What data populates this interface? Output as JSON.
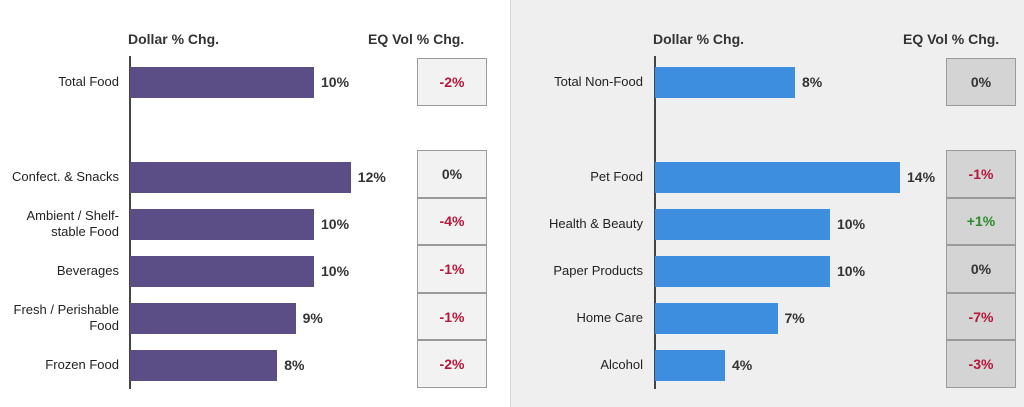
{
  "colors": {
    "food_bar": "#5b4d86",
    "nonfood_bar": "#3d8ede",
    "negative": "#b5173a",
    "positive": "#2b8a2b",
    "neutral": "#333333",
    "eq_box_left": "#f2f2f2",
    "eq_box_right": "#d4d4d4"
  },
  "chart_data": [
    {
      "type": "bar",
      "orientation": "horizontal",
      "xlabel": "Dollar % Chg.",
      "eq_header": "EQ Vol % Chg.",
      "categories": [
        "Total Food",
        "Confect. & Snacks",
        "Ambient / Shelf-stable Food",
        "Beverages",
        "Fresh / Perishable Food",
        "Frozen Food"
      ],
      "category_lines": [
        [
          "Total Food"
        ],
        [
          "Confect. & Snacks"
        ],
        [
          "Ambient / Shelf-",
          "stable Food"
        ],
        [
          "Beverages"
        ],
        [
          "Fresh / Perishable",
          "Food"
        ],
        [
          "Frozen Food"
        ]
      ],
      "values": [
        10,
        12,
        10,
        10,
        9,
        8
      ],
      "value_labels": [
        "10%",
        "12%",
        "10%",
        "10%",
        "9%",
        "8%"
      ],
      "eq_vol": [
        "-2%",
        "0%",
        "-4%",
        "-1%",
        "-1%",
        "-2%"
      ]
    },
    {
      "type": "bar",
      "orientation": "horizontal",
      "xlabel": "Dollar % Chg.",
      "eq_header": "EQ Vol % Chg.",
      "categories": [
        "Total Non-Food",
        "Pet Food",
        "Health & Beauty",
        "Paper Products",
        "Home Care",
        "Alcohol"
      ],
      "category_lines": [
        [
          "Total Non-Food"
        ],
        [
          "Pet Food"
        ],
        [
          "Health & Beauty"
        ],
        [
          "Paper Products"
        ],
        [
          "Home Care"
        ],
        [
          "Alcohol"
        ]
      ],
      "values": [
        8,
        14,
        10,
        10,
        7,
        4
      ],
      "value_labels": [
        "8%",
        "14%",
        "10%",
        "10%",
        "7%",
        "4%"
      ],
      "eq_vol": [
        "0%",
        "-1%",
        "+1%",
        "0%",
        "-7%",
        "-3%"
      ]
    }
  ]
}
